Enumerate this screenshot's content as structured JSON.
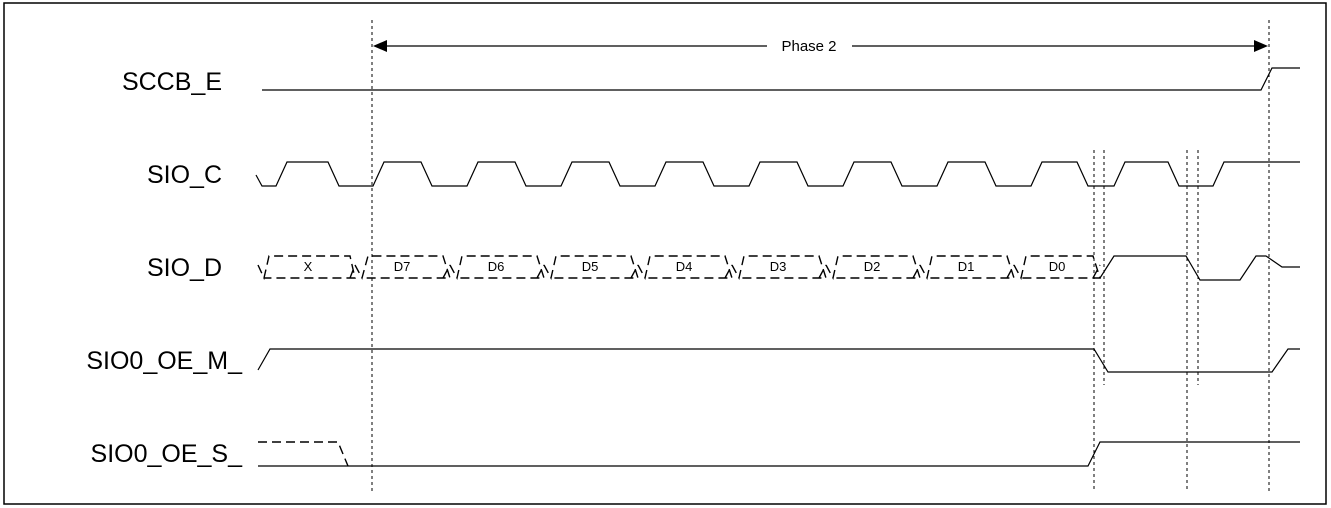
{
  "phase": {
    "label": "Phase 2"
  },
  "signals": [
    {
      "id": "sccb-e",
      "label": "SCCB_E"
    },
    {
      "id": "sio-c",
      "label": "SIO_C"
    },
    {
      "id": "sio-d",
      "label": "SIO_D"
    },
    {
      "id": "sio0-oe-m",
      "label": "SIO0_OE_M_"
    },
    {
      "id": "sio0-oe-s",
      "label": "SIO0_OE_S_"
    }
  ],
  "data_bits": [
    "X",
    "D7",
    "D6",
    "D5",
    "D4",
    "D3",
    "D2",
    "D1",
    "D0"
  ],
  "colors": {
    "line": "#000000",
    "background": "#ffffff"
  }
}
